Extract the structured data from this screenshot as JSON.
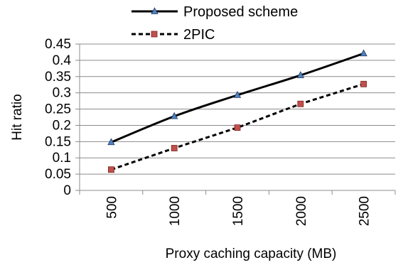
{
  "chart_data": {
    "type": "line",
    "title": "",
    "xlabel": "Proxy caching capacity (MB)",
    "ylabel": "Hit ratio",
    "categories": [
      "500",
      "1000",
      "1500",
      "2000",
      "2500"
    ],
    "ylim": [
      0,
      0.45
    ],
    "yticks": [
      "0",
      "0.05",
      "0.1",
      "0.15",
      "0.2",
      "0.25",
      "0.3",
      "0.35",
      "0.4",
      "0.45"
    ],
    "grid": true,
    "legend_position": "top",
    "series": [
      {
        "name": "Proposed scheme",
        "values": [
          0.148,
          0.228,
          0.293,
          0.354,
          0.421
        ],
        "line_color": "#000000",
        "line_style": "solid",
        "marker": "triangle",
        "marker_color": "#4f81bd"
      },
      {
        "name": "2PIC",
        "values": [
          0.064,
          0.13,
          0.193,
          0.266,
          0.327
        ],
        "line_color": "#000000",
        "line_style": "dashed",
        "marker": "square",
        "marker_color": "#c0504d"
      }
    ]
  }
}
